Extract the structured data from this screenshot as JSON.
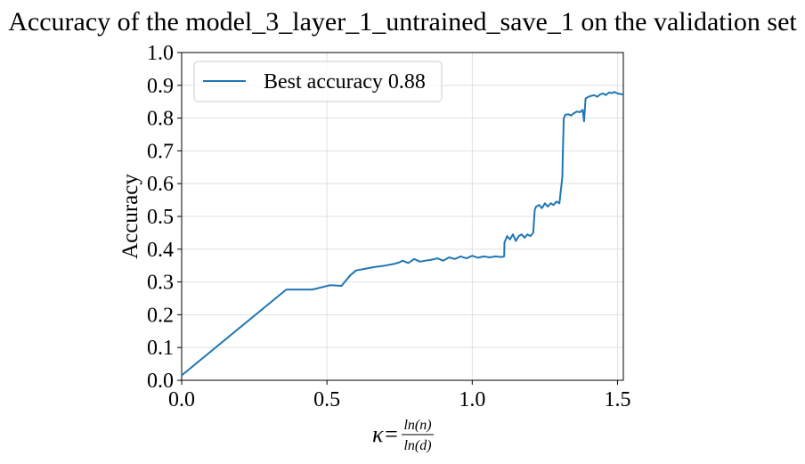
{
  "chart_data": {
    "type": "line",
    "title": "Accuracy of the model_3_layer_1_untrained_save_1 on the validation set",
    "ylabel": "Accuracy",
    "xlabel": {
      "prefix": "κ=",
      "numerator": "ln(n)",
      "denominator": "ln(d)"
    },
    "xlim": [
      0.0,
      1.52
    ],
    "ylim": [
      0.0,
      1.0
    ],
    "xticks": [
      0.0,
      0.5,
      1.0,
      1.5
    ],
    "xtick_labels": [
      "0.0",
      "0.5",
      "1.0",
      "1.5"
    ],
    "yticks": [
      0.0,
      0.1,
      0.2,
      0.3,
      0.4,
      0.5,
      0.6,
      0.7,
      0.8,
      0.9,
      1.0
    ],
    "ytick_labels": [
      "0.0",
      "0.1",
      "0.2",
      "0.3",
      "0.4",
      "0.5",
      "0.6",
      "0.7",
      "0.8",
      "0.9",
      "1.0"
    ],
    "grid": true,
    "legend_position": "top-left",
    "series": [
      {
        "name": "Best accuracy 0.88",
        "color": "#1f77b4",
        "x": [
          0.0,
          0.36,
          0.45,
          0.51,
          0.55,
          0.58,
          0.6,
          0.63,
          0.66,
          0.7,
          0.73,
          0.75,
          0.76,
          0.78,
          0.8,
          0.82,
          0.84,
          0.86,
          0.88,
          0.9,
          0.92,
          0.94,
          0.96,
          0.98,
          1.0,
          1.02,
          1.04,
          1.06,
          1.08,
          1.1,
          1.11,
          1.111,
          1.12,
          1.13,
          1.14,
          1.15,
          1.16,
          1.17,
          1.18,
          1.19,
          1.2,
          1.21,
          1.215,
          1.22,
          1.23,
          1.24,
          1.25,
          1.26,
          1.27,
          1.28,
          1.29,
          1.3,
          1.31,
          1.312,
          1.315,
          1.318,
          1.32,
          1.33,
          1.34,
          1.35,
          1.36,
          1.37,
          1.38,
          1.385,
          1.39,
          1.4,
          1.41,
          1.42,
          1.43,
          1.44,
          1.45,
          1.46,
          1.47,
          1.48,
          1.49,
          1.5,
          1.52
        ],
        "y": [
          0.015,
          0.277,
          0.277,
          0.29,
          0.288,
          0.32,
          0.335,
          0.34,
          0.345,
          0.35,
          0.355,
          0.36,
          0.365,
          0.358,
          0.37,
          0.362,
          0.365,
          0.368,
          0.372,
          0.365,
          0.375,
          0.37,
          0.378,
          0.372,
          0.38,
          0.374,
          0.378,
          0.375,
          0.378,
          0.376,
          0.378,
          0.42,
          0.44,
          0.43,
          0.445,
          0.425,
          0.44,
          0.445,
          0.435,
          0.445,
          0.44,
          0.45,
          0.52,
          0.53,
          0.535,
          0.525,
          0.54,
          0.53,
          0.54,
          0.535,
          0.545,
          0.54,
          0.62,
          0.7,
          0.8,
          0.805,
          0.81,
          0.812,
          0.808,
          0.815,
          0.82,
          0.818,
          0.825,
          0.79,
          0.86,
          0.865,
          0.868,
          0.87,
          0.865,
          0.872,
          0.875,
          0.87,
          0.878,
          0.876,
          0.88,
          0.875,
          0.872
        ]
      }
    ]
  }
}
